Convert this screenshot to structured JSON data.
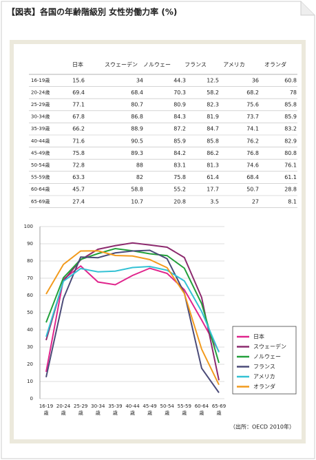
{
  "header": {
    "title": "【図表】各国の年齢階級別 女性労働力率 (%)"
  },
  "chart_data": {
    "type": "line",
    "categories": [
      "16-19歳",
      "20-24歳",
      "25-29歳",
      "30-34歳",
      "35-39歳",
      "40-44歳",
      "45-49歳",
      "50-54歳",
      "55-59歳",
      "60-64歳",
      "65-69歳"
    ],
    "series": [
      {
        "name": "日本",
        "color": "#e0248c",
        "values": [
          15.6,
          69.4,
          77.1,
          67.8,
          66.2,
          71.6,
          75.8,
          72.8,
          63.3,
          45.7,
          27.4
        ]
      },
      {
        "name": "スウェーデン",
        "color": "#8c2a6e",
        "values": [
          34,
          68.4,
          80.7,
          86.8,
          88.9,
          90.5,
          89.3,
          88,
          82,
          58.8,
          10.7
        ]
      },
      {
        "name": "ノルウェー",
        "color": "#22a03a",
        "values": [
          44.3,
          70.3,
          80.9,
          84.3,
          87.2,
          85.9,
          84.2,
          83.1,
          75.8,
          55.2,
          20.8
        ]
      },
      {
        "name": "フランス",
        "color": "#4b4b78",
        "values": [
          12.5,
          58.2,
          82.3,
          81.9,
          84.7,
          85.8,
          86.2,
          81.3,
          61.4,
          17.7,
          3.5
        ]
      },
      {
        "name": "アメリカ",
        "color": "#33c1d4",
        "values": [
          36,
          68.2,
          75.6,
          73.7,
          74.1,
          76.2,
          76.8,
          74.6,
          68.4,
          50.7,
          27
        ]
      },
      {
        "name": "オランダ",
        "color": "#f29a1c",
        "values": [
          60.8,
          78,
          85.8,
          85.9,
          83.2,
          82.9,
          80.8,
          76.1,
          61.1,
          28.8,
          8.1
        ]
      }
    ],
    "ylim": [
      0,
      100
    ],
    "yticks": [
      0,
      10,
      20,
      30,
      40,
      50,
      60,
      70,
      80,
      90,
      100
    ],
    "grid": true,
    "legend": "lower right",
    "source": "（出所：OECD 2010年）"
  }
}
